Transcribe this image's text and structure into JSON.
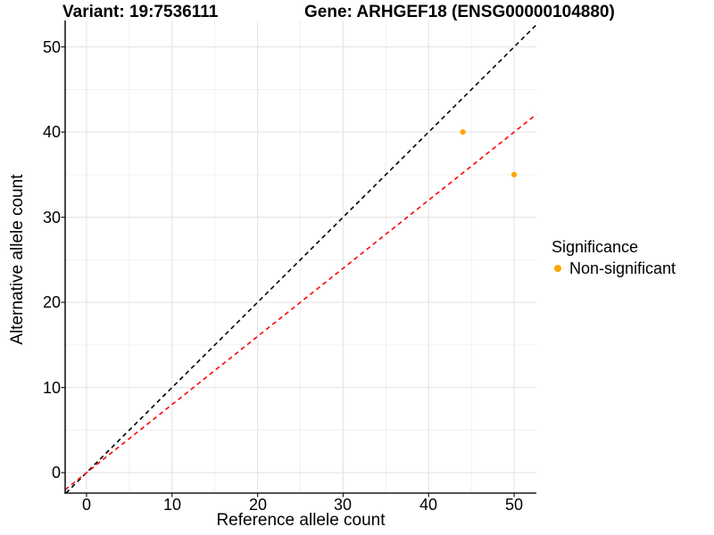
{
  "chart_data": {
    "type": "scatter",
    "title_left": "Variant: 19:7536111",
    "title_right": "Gene: ARHGEF18 (ENSG00000104880)",
    "xlabel": "Reference allele count",
    "ylabel": "Alternative allele count",
    "xlim": [
      -2.5,
      52.6
    ],
    "ylim": [
      -2.4,
      53.1
    ],
    "x_ticks": [
      0,
      10,
      20,
      30,
      40,
      50
    ],
    "y_ticks": [
      0,
      10,
      20,
      30,
      40,
      50
    ],
    "x_minor_ticks": [
      5,
      15,
      25,
      35,
      45
    ],
    "y_minor_ticks": [
      5,
      15,
      25,
      35,
      45
    ],
    "grid": true,
    "points": [
      {
        "x": 44,
        "y": 40,
        "significance": "Non-significant",
        "color": "#FFA500"
      },
      {
        "x": 50,
        "y": 35,
        "significance": "Non-significant",
        "color": "#FFA500"
      }
    ],
    "lines": [
      {
        "name": "identity-line",
        "slope": 1,
        "intercept": 0,
        "color": "#000000",
        "style": "dashed"
      },
      {
        "name": "allelic-ratio-line",
        "slope": 0.8,
        "intercept": 0,
        "color": "#FF0000",
        "style": "dashed"
      }
    ],
    "legend": {
      "title": "Significance",
      "position": "right",
      "items": [
        {
          "label": "Non-significant",
          "color": "#FFA500"
        }
      ]
    }
  }
}
